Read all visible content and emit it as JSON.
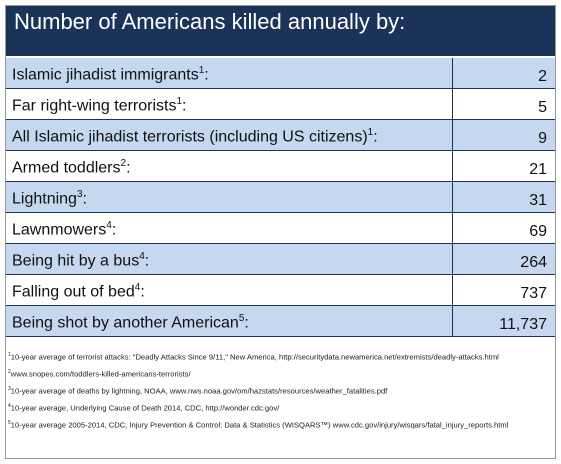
{
  "title": "Number of Americans killed annually by:",
  "rows": [
    {
      "label": "Islamic jihadist immigrants",
      "note": "1",
      "tail": ":",
      "value": "2"
    },
    {
      "label": "Far right-wing terrorists",
      "note": "1",
      "tail": ":",
      "value": "5"
    },
    {
      "label": "All Islamic jihadist terrorists (including US citizens)",
      "note": "1",
      "tail": ":",
      "value": "9"
    },
    {
      "label": "Armed toddlers",
      "note": "2",
      "tail": ":",
      "value": "21"
    },
    {
      "label": "Lightning",
      "note": "3",
      "tail": ":",
      "value": "31"
    },
    {
      "label": "Lawnmowers",
      "note": "4",
      "tail": ":",
      "value": "69"
    },
    {
      "label": "Being hit by a bus",
      "note": "4",
      "tail": ":",
      "value": "264"
    },
    {
      "label": "Falling out of bed",
      "note": "4",
      "tail": ":",
      "value": "737"
    },
    {
      "label": "Being shot by another American",
      "note": "5",
      "tail": ":",
      "value": "11,737"
    }
  ],
  "footnotes": [
    {
      "note": "1",
      "text": "10-year average of terrorist attacks: \"Deadly Attacks Since 9/11,\" New America, http://securitydata.newamerica.net/extremists/deadly-attacks.html"
    },
    {
      "note": "2",
      "text": "www.snopes.com/toddlers-killed-americans-terrorists/"
    },
    {
      "note": "3",
      "text": "10-year average of deaths by lightning, NOAA, www.nws.noaa.gov/om/hazstats/resources/weather_fatalities.pdf"
    },
    {
      "note": "4",
      "text": "10-year average, Underlying Cause of Death 2014, CDC, http://wonder.cdc.gov/"
    },
    {
      "note": "5",
      "text": "10-year average 2005-2014, CDC, Injury Prevention & Control: Data & Statistics (WISQARS™) www.cdc.gov/injury/wisqars/fatal_injury_reports.html"
    }
  ]
}
